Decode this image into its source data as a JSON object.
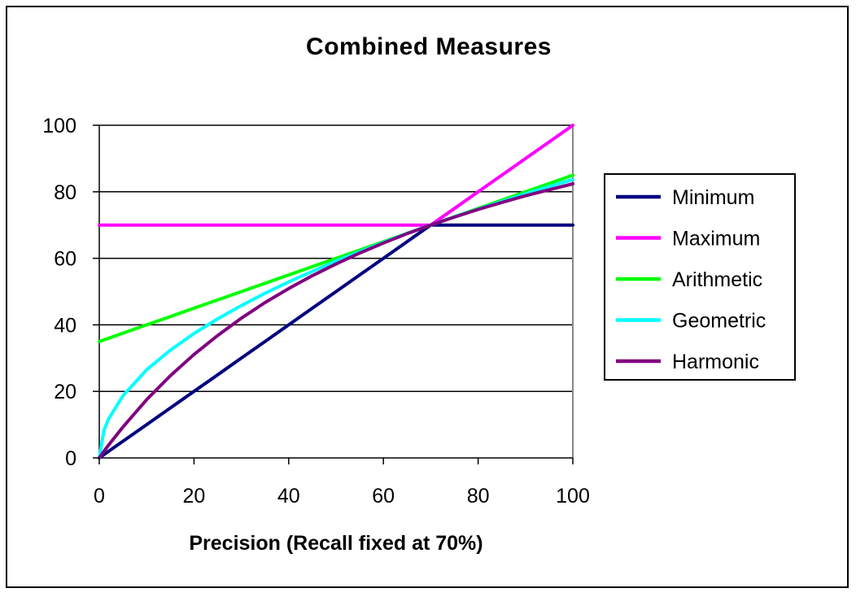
{
  "chart_data": {
    "type": "line",
    "title": "Combined Measures",
    "xlabel": "Precision (Recall fixed at 70%)",
    "ylabel": "",
    "xlim": [
      0,
      100
    ],
    "ylim": [
      0,
      100
    ],
    "xticks": [
      0,
      20,
      40,
      60,
      80,
      100
    ],
    "yticks": [
      0,
      20,
      40,
      60,
      80,
      100
    ],
    "grid": "horizontal",
    "legend_position": "right",
    "recall": 70,
    "x": [
      0,
      1,
      2,
      5,
      10,
      15,
      20,
      25,
      30,
      35,
      40,
      45,
      50,
      55,
      60,
      65,
      70,
      75,
      80,
      85,
      90,
      95,
      100
    ],
    "series": [
      {
        "name": "Minimum",
        "color": "#000080",
        "values": [
          0,
          1,
          2,
          5,
          10,
          15,
          20,
          25,
          30,
          35,
          40,
          45,
          50,
          55,
          60,
          65,
          70,
          70,
          70,
          70,
          70,
          70,
          70
        ]
      },
      {
        "name": "Maximum",
        "color": "#ff00ff",
        "values": [
          70,
          70,
          70,
          70,
          70,
          70,
          70,
          70,
          70,
          70,
          70,
          70,
          70,
          70,
          70,
          70,
          70,
          75,
          80,
          85,
          90,
          95,
          100
        ]
      },
      {
        "name": "Arithmetic",
        "color": "#00ff00",
        "values": [
          35,
          35.5,
          36,
          37.5,
          40,
          42.5,
          45,
          47.5,
          50,
          52.5,
          55,
          57.5,
          60,
          62.5,
          65,
          67.5,
          70,
          72.5,
          75,
          77.5,
          80,
          82.5,
          85
        ]
      },
      {
        "name": "Geometric",
        "color": "#00ffff",
        "values": [
          0,
          8.4,
          11.8,
          18.7,
          26.5,
          32.4,
          37.4,
          41.8,
          45.8,
          49.5,
          52.9,
          56.1,
          59.2,
          62.0,
          64.8,
          67.5,
          70,
          72.5,
          74.8,
          77.1,
          79.4,
          81.6,
          83.7
        ]
      },
      {
        "name": "Harmonic",
        "color": "#800080",
        "values": [
          0,
          2.0,
          3.9,
          9.3,
          17.5,
          24.7,
          31.1,
          36.8,
          42.0,
          46.7,
          50.9,
          54.8,
          58.3,
          61.6,
          64.6,
          67.4,
          70,
          72.4,
          74.7,
          76.8,
          78.8,
          80.6,
          82.4
        ]
      }
    ]
  }
}
